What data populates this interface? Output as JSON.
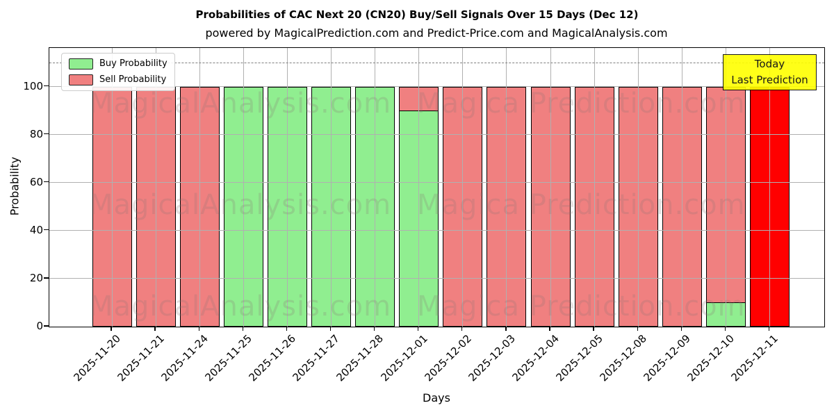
{
  "chart_data": {
    "type": "bar",
    "stacked": true,
    "title": "Probabilities of CAC Next 20 (CN20) Buy/Sell Signals Over 15 Days (Dec 12)",
    "subtitle": "powered by MagicalPrediction.com and Predict-Price.com and MagicalAnalysis.com",
    "xlabel": "Days",
    "ylabel": "Probability",
    "ylim": [
      0,
      116
    ],
    "yticks": [
      0,
      20,
      40,
      60,
      80,
      100
    ],
    "dashed_line_y": 110,
    "grid": true,
    "legend_position": "upper left",
    "categories": [
      "2025-11-20",
      "2025-11-21",
      "2025-11-24",
      "2025-11-25",
      "2025-11-26",
      "2025-11-27",
      "2025-11-28",
      "2025-12-01",
      "2025-12-02",
      "2025-12-03",
      "2025-12-04",
      "2025-12-05",
      "2025-12-08",
      "2025-12-09",
      "2025-12-10",
      "2025-12-11"
    ],
    "series": [
      {
        "name": "Buy Probability",
        "color": "#90ee90",
        "values": [
          0,
          0,
          0,
          100,
          100,
          100,
          100,
          90,
          0,
          0,
          0,
          0,
          0,
          0,
          10,
          0
        ]
      },
      {
        "name": "Sell Probability",
        "color": "#f08080",
        "values": [
          100,
          100,
          100,
          0,
          0,
          0,
          0,
          10,
          100,
          100,
          100,
          100,
          100,
          100,
          90,
          0
        ]
      },
      {
        "name": "Today Last Prediction",
        "color": "#ff0000",
        "values": [
          0,
          0,
          0,
          0,
          0,
          0,
          0,
          0,
          0,
          0,
          0,
          0,
          0,
          0,
          0,
          100
        ]
      }
    ]
  },
  "legend": {
    "items": [
      {
        "label": "Buy Probability",
        "color": "#90ee90"
      },
      {
        "label": "Sell Probability",
        "color": "#f08080"
      }
    ]
  },
  "annotation": {
    "line1": "Today",
    "line2": "Last Prediction",
    "bg_color": "#ffff00"
  },
  "watermark": {
    "left_text": "MagicalAnalysis.com",
    "right_text": "Magica Prediction.com"
  }
}
